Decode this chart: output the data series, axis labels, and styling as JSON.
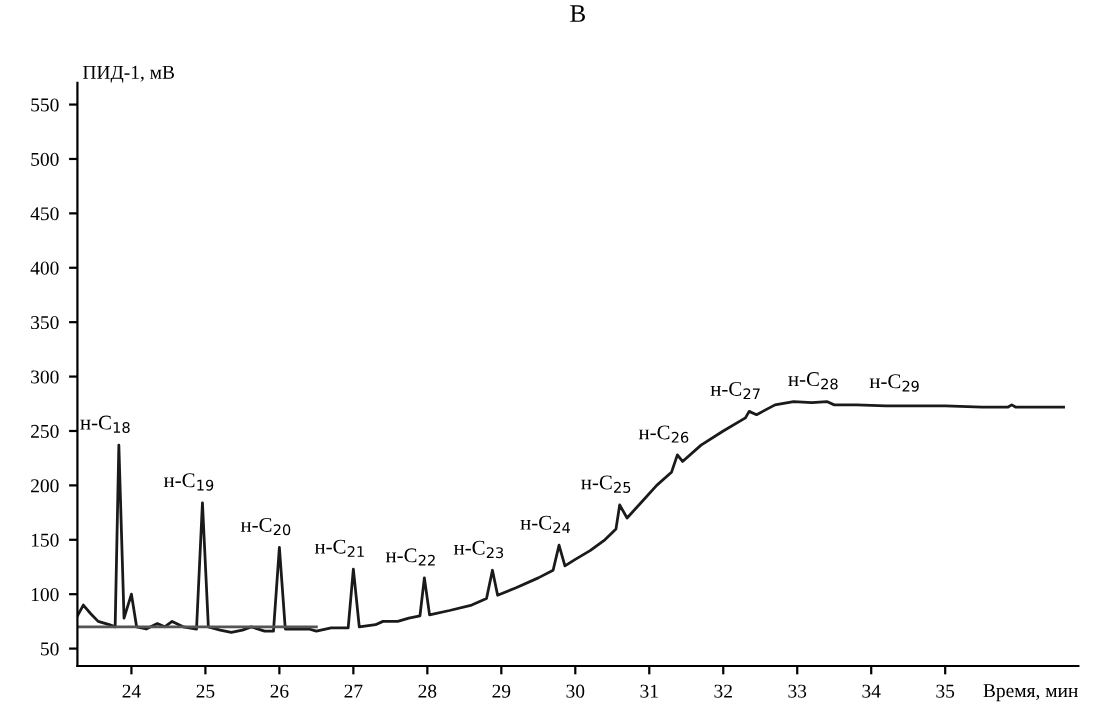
{
  "chart_data": {
    "type": "line",
    "title": "В",
    "xlabel": "Время, мин",
    "ylabel": "ПИД-1, мВ",
    "xlim": [
      23.27,
      36.8
    ],
    "ylim": [
      34,
      570
    ],
    "xticks": [
      24,
      25,
      26,
      27,
      28,
      29,
      30,
      31,
      32,
      33,
      34,
      35
    ],
    "yticks": [
      50,
      100,
      150,
      200,
      250,
      300,
      350,
      400,
      450,
      500,
      550
    ],
    "grid": false,
    "legend": false,
    "marker": "none",
    "line_style": "solid",
    "series": [
      {
        "color": "#1a1a1a",
        "x": [
          23.27,
          23.35,
          23.45,
          23.55,
          23.7,
          23.78,
          23.83,
          23.9,
          24.0,
          24.07,
          24.2,
          24.35,
          24.45,
          24.55,
          24.7,
          24.88,
          24.96,
          25.04,
          25.2,
          25.35,
          25.5,
          25.62,
          25.8,
          25.92,
          26.0,
          26.08,
          26.2,
          26.4,
          26.5,
          26.7,
          26.93,
          27.0,
          27.08,
          27.3,
          27.4,
          27.6,
          27.75,
          27.9,
          27.96,
          28.03,
          28.3,
          28.6,
          28.8,
          28.88,
          28.95,
          29.2,
          29.5,
          29.7,
          29.78,
          29.86,
          30.0,
          30.2,
          30.4,
          30.55,
          30.6,
          30.7,
          30.9,
          31.1,
          31.3,
          31.38,
          31.45,
          31.7,
          32.0,
          32.3,
          32.35,
          32.45,
          32.7,
          32.95,
          33.2,
          33.4,
          33.5,
          33.8,
          34.2,
          34.5,
          35.0,
          35.5,
          35.85,
          35.9,
          35.95,
          36.6
        ],
        "values": [
          80,
          90,
          82,
          75,
          72,
          70,
          237,
          78,
          100,
          70,
          68,
          73,
          70,
          75,
          70,
          68,
          184,
          70,
          67,
          65,
          67,
          70,
          66,
          66,
          143,
          68,
          68,
          68,
          66,
          69,
          69,
          123,
          70,
          72,
          75,
          75,
          78,
          80,
          115,
          81,
          85,
          90,
          96,
          122,
          99,
          106,
          115,
          122,
          145,
          126,
          132,
          140,
          150,
          160,
          182,
          170,
          185,
          200,
          212,
          228,
          222,
          237,
          250,
          262,
          268,
          265,
          274,
          277,
          276,
          277,
          274,
          274,
          273,
          273,
          273,
          272,
          272,
          274,
          272,
          272
        ]
      },
      {
        "color": "#555555",
        "x": [
          23.27,
          26.5
        ],
        "values": [
          70,
          70
        ]
      }
    ],
    "annotations": [
      {
        "text": "н-C$_{18}$",
        "x": 23.83,
        "y": 237
      },
      {
        "text": "н-C$_{19}$",
        "x": 24.96,
        "y": 184
      },
      {
        "text": "н-C$_{20}$",
        "x": 26.0,
        "y": 143
      },
      {
        "text": "н-C$_{21}$",
        "x": 27.0,
        "y": 123
      },
      {
        "text": "н-C$_{22}$",
        "x": 27.96,
        "y": 115
      },
      {
        "text": "н-C$_{23}$",
        "x": 28.88,
        "y": 122
      },
      {
        "text": "н-C$_{24}$",
        "x": 29.78,
        "y": 145
      },
      {
        "text": "н-C$_{25}$",
        "x": 30.6,
        "y": 182
      },
      {
        "text": "н-C$_{26}$",
        "x": 31.38,
        "y": 228
      },
      {
        "text": "н-C$_{27}$",
        "x": 32.35,
        "y": 268
      },
      {
        "text": "н-C$_{28}$",
        "x": 33.4,
        "y": 277
      },
      {
        "text": "н-C$_{29}$",
        "x": 34.5,
        "y": 275
      }
    ]
  }
}
